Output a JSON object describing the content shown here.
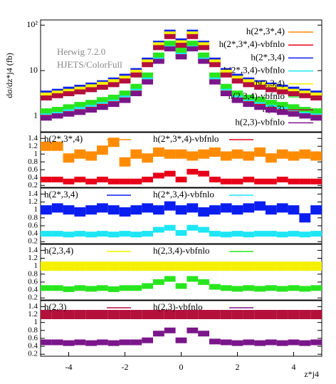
{
  "chart_data": [
    {
      "type": "histogram",
      "ylabel": "dσ/dz*j4 (fb)",
      "annotations": [
        "Herwig 7.2.0",
        "HJETS/ColorFull"
      ],
      "log_y": true,
      "bins": [
        -5,
        -4.6,
        -4.2,
        -3.8,
        -3.4,
        -3,
        -2.6,
        -2.2,
        -1.8,
        -1.4,
        -1,
        -0.6,
        -0.2,
        0.2,
        0.6,
        1,
        1.4,
        1.8,
        2.2,
        2.6,
        3,
        3.4,
        3.8,
        4.2,
        4.6,
        5
      ],
      "xlim": [
        -5,
        5
      ],
      "ylim": [
        0.45,
        130
      ],
      "yticks": [
        1,
        10,
        {
          "value": 100,
          "label": "10²"
        }
      ],
      "legend": "upper right",
      "series": [
        {
          "name": "h(2*,3*,4)",
          "color": "#ff8c00",
          "values": [
            3,
            3.3,
            3.6,
            4.2,
            4.5,
            5.2,
            5.8,
            7,
            9.5,
            16,
            38,
            66,
            42,
            66,
            38,
            16,
            9.5,
            7,
            5.8,
            5.2,
            4.5,
            4.1,
            3.6,
            3.3,
            3
          ]
        },
        {
          "name": "h(2*,3*,4)-vbfnlo",
          "color": "#e8001a",
          "values": [
            1.1,
            1.2,
            1.35,
            1.5,
            1.7,
            1.9,
            2.2,
            2.7,
            3.8,
            6.8,
            19,
            35,
            24,
            35,
            19,
            6.8,
            3.8,
            2.7,
            2.2,
            1.9,
            1.7,
            1.5,
            1.35,
            1.2,
            1.1
          ]
        },
        {
          "name": "h(2*,3,4)",
          "color": "#0a1ef0",
          "values": [
            3.2,
            3.5,
            3.9,
            4.3,
            4.8,
            5.4,
            6.2,
            7.5,
            10,
            17,
            40,
            70,
            45,
            70,
            40,
            17,
            10,
            7.5,
            6.2,
            5.4,
            4.8,
            4.3,
            3.9,
            3.5,
            3.2
          ]
        },
        {
          "name": "h(2*,3,4)-vbfnlo",
          "color": "#1ee6f5",
          "values": [
            1.2,
            1.3,
            1.45,
            1.6,
            1.8,
            2.1,
            2.4,
            2.9,
            4.1,
            7.3,
            20,
            37,
            26,
            37,
            20,
            7.3,
            4.1,
            2.9,
            2.4,
            2.1,
            1.8,
            1.6,
            1.45,
            1.3,
            1.2
          ]
        },
        {
          "name": "h(2,3,4)",
          "color": "#f5f000",
          "values": [
            2.9,
            3.2,
            3.5,
            3.9,
            4.4,
            5,
            5.7,
            6.8,
            9.2,
            15.5,
            37,
            64,
            41,
            64,
            37,
            15.5,
            9.2,
            6.8,
            5.7,
            5,
            4.4,
            3.9,
            3.5,
            3.2,
            2.9
          ]
        },
        {
          "name": "h(2,3,4)-vbfnlo",
          "color": "#28e61e",
          "values": [
            1.3,
            1.4,
            1.6,
            1.8,
            2,
            2.3,
            2.6,
            3.2,
            4.5,
            8,
            22,
            40,
            28,
            40,
            22,
            8,
            4.5,
            3.2,
            2.6,
            2.3,
            2,
            1.8,
            1.6,
            1.4,
            1.3
          ]
        },
        {
          "name": "h(2,3)",
          "color": "#b4103c",
          "values": [
            2.5,
            2.8,
            3.1,
            3.4,
            3.8,
            4.3,
            4.9,
            5.9,
            8,
            13.5,
            32,
            56,
            36,
            56,
            32,
            13.5,
            8,
            5.9,
            4.9,
            4.3,
            3.8,
            3.4,
            3.1,
            2.8,
            2.5
          ]
        },
        {
          "name": "h(2,3)-vbfnlo",
          "color": "#7a168a",
          "values": [
            0.9,
            1,
            1.1,
            1.2,
            1.35,
            1.55,
            1.8,
            2.2,
            3.1,
            5.6,
            16,
            30,
            20,
            30,
            16,
            5.6,
            3.1,
            2.2,
            1.8,
            1.55,
            1.35,
            1.2,
            1.1,
            1,
            0.9
          ]
        }
      ]
    },
    {
      "type": "histogram",
      "bins": [
        -5,
        -4.6,
        -4.2,
        -3.8,
        -3.4,
        -3,
        -2.6,
        -2.2,
        -1.8,
        -1.4,
        -1,
        -0.6,
        -0.2,
        0.2,
        0.6,
        1,
        1.4,
        1.8,
        2.2,
        2.6,
        3,
        3.4,
        3.8,
        4.2,
        4.6,
        5
      ],
      "xlim": [
        -5,
        5
      ],
      "ylim": [
        0.15,
        1.55
      ],
      "yticks": [
        0.2,
        0.4,
        0.6,
        0.8,
        1,
        1.2,
        1.4
      ],
      "series": [
        {
          "name": "h(2*,3*,4)",
          "color": "#ff8c00",
          "values": [
            1.2,
            1.2,
            0.9,
            1.0,
            0.95,
            1.1,
            1.3,
            0.8,
            1.0,
            0.9,
            1.05,
            1.0,
            1.0,
            0.95,
            1.0,
            1.05,
            0.95,
            1.0,
            0.95,
            1.05,
            0.9,
            1.0,
            0.95,
            1.0,
            0.95
          ]
        },
        {
          "name": "h(2*,3*,4)-vbfnlo",
          "color": "#e8001a",
          "values": [
            0.35,
            0.35,
            0.3,
            0.35,
            0.3,
            0.35,
            0.3,
            0.3,
            0.3,
            0.35,
            0.45,
            0.5,
            0.35,
            0.55,
            0.5,
            0.35,
            0.3,
            0.3,
            0.35,
            0.3,
            0.3,
            0.35,
            0.3,
            0.3,
            0.3
          ]
        }
      ]
    },
    {
      "type": "histogram",
      "bins": [
        -5,
        -4.6,
        -4.2,
        -3.8,
        -3.4,
        -3,
        -2.6,
        -2.2,
        -1.8,
        -1.4,
        -1,
        -0.6,
        -0.2,
        0.2,
        0.6,
        1,
        1.4,
        1.8,
        2.2,
        2.6,
        3,
        3.4,
        3.8,
        4.2,
        4.6,
        5
      ],
      "xlim": [
        -5,
        5
      ],
      "ylim": [
        0.15,
        1.55
      ],
      "yticks": [
        0.2,
        0.4,
        0.6,
        0.8,
        1,
        1.2,
        1.4
      ],
      "series": [
        {
          "name": "h(2*,3,4)",
          "color": "#0a1ef0",
          "values": [
            1.0,
            1.05,
            1.0,
            0.95,
            1.0,
            1.05,
            1.0,
            0.95,
            1.0,
            1.05,
            1.0,
            1.1,
            1.0,
            1.05,
            0.95,
            1.0,
            1.05,
            1.0,
            1.05,
            1.1,
            1.0,
            1.05,
            1.0,
            0.8,
            1.0
          ]
        },
        {
          "name": "h(2*,3,4)-vbfnlo",
          "color": "#1ee6f5",
          "values": [
            0.4,
            0.4,
            0.38,
            0.4,
            0.38,
            0.4,
            0.38,
            0.4,
            0.38,
            0.4,
            0.5,
            0.55,
            0.42,
            0.55,
            0.5,
            0.4,
            0.38,
            0.4,
            0.38,
            0.4,
            0.4,
            0.38,
            0.4,
            0.38,
            0.4
          ]
        }
      ]
    },
    {
      "type": "histogram",
      "bins": [
        -5,
        -4.6,
        -4.2,
        -3.8,
        -3.4,
        -3,
        -2.6,
        -2.2,
        -1.8,
        -1.4,
        -1,
        -0.6,
        -0.2,
        0.2,
        0.6,
        1,
        1.4,
        1.8,
        2.2,
        2.6,
        3,
        3.4,
        3.8,
        4.2,
        4.6,
        5
      ],
      "xlim": [
        -5,
        5
      ],
      "ylim": [
        0.15,
        1.55
      ],
      "yticks": [
        0.2,
        0.4,
        0.6,
        0.8,
        1,
        1.2,
        1.4
      ],
      "series": [
        {
          "name": "h(2,3,4)",
          "color": "#f5f000",
          "values": [
            1.0,
            1.0,
            1.0,
            1.0,
            1.0,
            1.0,
            1.0,
            1.0,
            1.0,
            1.0,
            1.0,
            1.0,
            1.0,
            1.0,
            1.0,
            1.0,
            1.0,
            1.0,
            1.0,
            1.0,
            1.0,
            1.0,
            1.0,
            1.0,
            1.0
          ]
        },
        {
          "name": "h(2,3,4)-vbfnlo",
          "color": "#28e61e",
          "values": [
            0.45,
            0.45,
            0.42,
            0.45,
            0.43,
            0.45,
            0.42,
            0.45,
            0.45,
            0.5,
            0.6,
            0.68,
            0.5,
            0.68,
            0.6,
            0.48,
            0.45,
            0.43,
            0.45,
            0.43,
            0.45,
            0.43,
            0.45,
            0.43,
            0.45
          ]
        }
      ]
    },
    {
      "type": "histogram",
      "xlabel": "z*j4",
      "bins": [
        -5,
        -4.6,
        -4.2,
        -3.8,
        -3.4,
        -3,
        -2.6,
        -2.2,
        -1.8,
        -1.4,
        -1,
        -0.6,
        -0.2,
        0.2,
        0.6,
        1,
        1.4,
        1.8,
        2.2,
        2.6,
        3,
        3.4,
        3.8,
        4.2,
        4.6,
        5
      ],
      "xlim": [
        -5,
        5
      ],
      "ylim": [
        0.15,
        1.55
      ],
      "yticks": [
        0.2,
        0.4,
        0.6,
        0.8,
        1,
        1.2,
        1.4
      ],
      "xticks": [
        -4,
        -2,
        0,
        2,
        4
      ],
      "series": [
        {
          "name": "h(2,3)",
          "color": "#b4103c",
          "values": [
            1.2,
            1.2,
            1.2,
            1.2,
            1.2,
            1.2,
            1.2,
            1.2,
            1.2,
            1.2,
            1.2,
            1.2,
            1.2,
            1.2,
            1.2,
            1.2,
            1.2,
            1.2,
            1.2,
            1.2,
            1.2,
            1.2,
            1.2,
            1.2,
            1.2
          ]
        },
        {
          "name": "h(2,3)-vbfnlo",
          "color": "#7a168a",
          "values": [
            0.5,
            0.5,
            0.48,
            0.5,
            0.48,
            0.5,
            0.48,
            0.5,
            0.5,
            0.55,
            0.72,
            0.8,
            0.55,
            0.8,
            0.72,
            0.52,
            0.5,
            0.48,
            0.5,
            0.48,
            0.5,
            0.48,
            0.5,
            0.48,
            0.5
          ]
        }
      ]
    }
  ]
}
